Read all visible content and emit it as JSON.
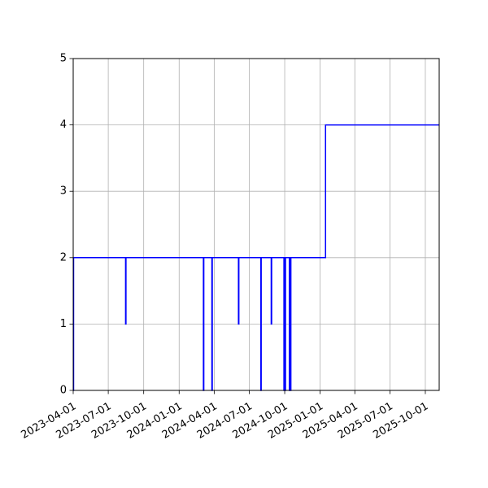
{
  "chart_data": {
    "type": "line",
    "title": "",
    "xlabel": "",
    "ylabel": "",
    "x_axis": {
      "kind": "date",
      "range": [
        "2023-04-01",
        "2025-11-06"
      ],
      "ticks": [
        "2023-04-01",
        "2023-07-01",
        "2023-10-01",
        "2024-01-01",
        "2024-04-01",
        "2024-07-01",
        "2024-10-01",
        "2025-01-01",
        "2025-04-01",
        "2025-07-01",
        "2025-10-01"
      ]
    },
    "y_axis": {
      "range": [
        0,
        5
      ],
      "ticks": [
        "0",
        "1",
        "2",
        "3",
        "4",
        "5"
      ]
    },
    "grid": true,
    "legend": false,
    "series": [
      {
        "color": "#0000ff",
        "step": "post",
        "x": [
          "2023-04-01",
          "2023-04-02",
          "2023-04-03",
          "2023-08-15",
          "2023-08-16",
          "2024-03-04",
          "2024-03-05",
          "2024-03-26",
          "2024-03-27",
          "2024-06-03",
          "2024-06-04",
          "2024-07-31",
          "2024-08-01",
          "2024-08-27",
          "2024-08-28",
          "2024-09-29",
          "2024-09-30",
          "2024-10-02",
          "2024-10-03",
          "2024-10-13",
          "2024-10-14",
          "2024-10-16",
          "2024-10-17",
          "2025-01-15",
          "2025-11-06"
        ],
        "y": [
          0,
          2,
          2,
          1,
          2,
          0,
          2,
          0,
          2,
          1,
          2,
          0,
          2,
          1,
          2,
          0,
          2,
          0,
          2,
          0,
          2,
          0,
          2,
          4,
          4
        ]
      }
    ]
  }
}
